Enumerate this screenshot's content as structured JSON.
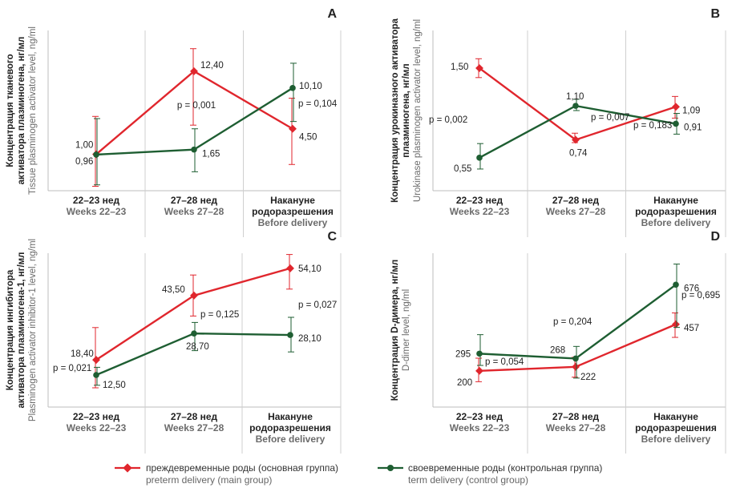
{
  "colors": {
    "preterm": "#e0262d",
    "term": "#1e5e32",
    "grid": "#cfcfcf",
    "axis": "#bdbdbd",
    "text": "#222222",
    "gray": "#6b6b6b"
  },
  "legend": {
    "preterm_ru": "преждевременные роды (основная группа)",
    "preterm_en": "preterm delivery (main group)",
    "term_ru": "своевременные роды (контрольная группа)",
    "term_en": "term delivery (control group)"
  },
  "chart_data": [
    {
      "type": "line",
      "panel": "A",
      "ylabel_ru": [
        "Концентрация тканевого",
        "активатора плазминогена, нг/мл"
      ],
      "ylabel_en": "Tissue plasminogen activator level, ng/ml",
      "categories_ru": [
        "22–23 нед",
        "27–28 нед",
        "Накануне\nродоразрешения"
      ],
      "categories_en": [
        "Weeks 22–23",
        "Weeks 27–28",
        "Before delivery"
      ],
      "ylim": [
        -4,
        18
      ],
      "series": [
        {
          "key": "preterm",
          "values": [
            1.0,
            12.4,
            4.5
          ],
          "labels": [
            "1,00",
            "12,40",
            "4,50"
          ],
          "err_low": [
            -3.4,
            5.0,
            -0.4
          ],
          "err_high": [
            6.2,
            15.5,
            8.7
          ]
        },
        {
          "key": "term",
          "values": [
            0.96,
            1.65,
            10.1
          ],
          "labels": [
            "0,96",
            "1,65",
            "10,10"
          ],
          "err_low": [
            -3.2,
            -1.4,
            5.5
          ],
          "err_high": [
            5.9,
            4.5,
            13.5
          ]
        }
      ],
      "p_values": [
        "p = 0,001",
        "p = 0,104"
      ]
    },
    {
      "type": "line",
      "panel": "B",
      "ylabel_ru": [
        "Концентрация урокиназного активатора",
        "плазминогена, нг/мл"
      ],
      "ylabel_en": "Urokinase plasminogen activator level, ng/ml",
      "categories_ru": [
        "22–23 нед",
        "27–28 нед",
        "Накануне\nродоразрешения"
      ],
      "categories_en": [
        "Weeks 22–23",
        "Weeks 27–28",
        "Before delivery"
      ],
      "ylim": [
        0.2,
        1.9
      ],
      "series": [
        {
          "key": "preterm",
          "values": [
            1.5,
            0.74,
            1.09
          ],
          "labels": [
            "1,50",
            "0,74",
            "1,09"
          ],
          "err_low": [
            1.4,
            0.71,
            0.97
          ],
          "err_high": [
            1.6,
            0.81,
            1.2
          ]
        },
        {
          "key": "term",
          "values": [
            0.55,
            1.1,
            0.91
          ],
          "labels": [
            "0,55",
            "1,10",
            "0,91"
          ],
          "err_low": [
            0.43,
            1.05,
            0.8
          ],
          "err_high": [
            0.7,
            1.17,
            1.02
          ]
        }
      ],
      "p_values": [
        "p = 0,002",
        "p = 0,007",
        "p = 0,183"
      ]
    },
    {
      "type": "line",
      "panel": "C",
      "ylabel_ru": [
        "Концентрация ингибитора",
        "активатора плазминогена-1, нг/мл"
      ],
      "ylabel_en": "Plasminogen activator inhibitor-1 level, ng/ml",
      "categories_ru": [
        "22–23 нед",
        "27–28 нед",
        "Накануне\nродоразрешения"
      ],
      "categories_en": [
        "Weeks 22–23",
        "Weeks 27–28",
        "Before delivery"
      ],
      "ylim": [
        0,
        60
      ],
      "series": [
        {
          "key": "preterm",
          "values": [
            18.4,
            43.5,
            54.1
          ],
          "labels": [
            "18,40",
            "43,50",
            "54,10"
          ],
          "err_low": [
            7.5,
            35.5,
            46.0
          ],
          "err_high": [
            31.0,
            51.5,
            59.5
          ]
        },
        {
          "key": "term",
          "values": [
            12.5,
            28.7,
            28.1
          ],
          "labels": [
            "12,50",
            "28,70",
            "28,10"
          ],
          "err_low": [
            8.5,
            22.0,
            21.5
          ],
          "err_high": [
            15.5,
            33.0,
            35.0
          ]
        }
      ],
      "p_values": [
        "p = 0,021",
        "p = 0,125",
        "p = 0,027"
      ]
    },
    {
      "type": "line",
      "panel": "D",
      "ylabel_ru": [
        "Концентрация D-димера, нг/мл"
      ],
      "ylabel_en": "D-dimer level, ng/ml",
      "categories_ru": [
        "22–23 нед",
        "27–28 нед",
        "Накануне\nродоразрешения"
      ],
      "categories_en": [
        "Weeks 22–23",
        "Weeks 27–28",
        "Before delivery"
      ],
      "ylim": [
        0,
        850
      ],
      "series": [
        {
          "key": "preterm",
          "values": [
            200,
            222,
            457
          ],
          "labels": [
            "200",
            "222",
            "457"
          ],
          "err_low": [
            140,
            165,
            385
          ],
          "err_high": [
            270,
            275,
            520
          ]
        },
        {
          "key": "term",
          "values": [
            295,
            268,
            676
          ],
          "labels": [
            "295",
            "268",
            "676"
          ],
          "err_low": [
            230,
            160,
            440
          ],
          "err_high": [
            400,
            335,
            790
          ]
        }
      ],
      "p_values": [
        "p = 0,054",
        "p = 0,204",
        "p = 0,695"
      ]
    }
  ]
}
